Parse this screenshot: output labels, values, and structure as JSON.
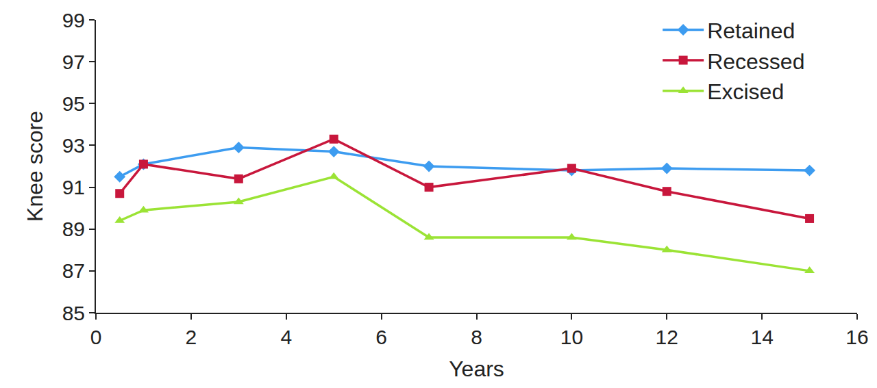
{
  "chart_data": {
    "type": "line",
    "xlabel": "Years",
    "ylabel": "Knee score",
    "x": [
      0.5,
      1,
      3,
      5,
      7,
      10,
      12,
      15
    ],
    "series": [
      {
        "name": "Retained",
        "color": "#3d9cf0",
        "marker": "diamond",
        "values": [
          91.5,
          92.1,
          92.9,
          92.7,
          92.0,
          91.8,
          91.9,
          91.8
        ]
      },
      {
        "name": "Recessed",
        "color": "#c8173c",
        "marker": "square",
        "values": [
          90.7,
          92.1,
          91.4,
          93.3,
          91.0,
          91.9,
          90.8,
          89.5
        ]
      },
      {
        "name": "Excised",
        "color": "#9be335",
        "marker": "triangle-up",
        "values": [
          89.4,
          89.9,
          90.3,
          91.5,
          88.6,
          88.6,
          88.0,
          87.0
        ]
      }
    ],
    "xlim": [
      0,
      16
    ],
    "xticks": [
      0,
      2,
      4,
      6,
      8,
      10,
      12,
      14,
      16
    ],
    "ylim": [
      85,
      99
    ],
    "yticks": [
      85,
      87,
      89,
      91,
      93,
      95,
      97,
      99
    ],
    "grid": false,
    "legend": "upper right"
  }
}
